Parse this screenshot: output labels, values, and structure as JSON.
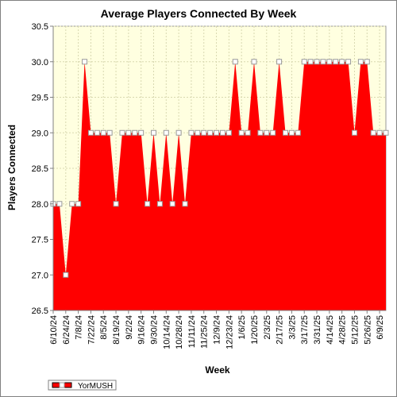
{
  "chart_data": {
    "type": "area",
    "title": "Average Players Connected By Week",
    "xlabel": "Week",
    "ylabel": "Players Connected",
    "ylim": [
      26.5,
      30.5
    ],
    "yticks": [
      "26.5",
      "27.0",
      "27.5",
      "28.0",
      "28.5",
      "29.0",
      "29.5",
      "30.0",
      "30.5"
    ],
    "xtick_labels": [
      "6/10/24",
      "6/24/24",
      "7/8/24",
      "7/22/24",
      "8/5/24",
      "8/19/24",
      "9/2/24",
      "9/16/24",
      "9/30/24",
      "10/14/24",
      "10/28/24",
      "11/11/24",
      "11/25/24",
      "12/9/24",
      "12/23/24",
      "1/6/25",
      "1/20/25",
      "2/3/25",
      "2/17/25",
      "3/3/25",
      "3/17/25",
      "3/31/25",
      "4/14/25",
      "4/28/25",
      "5/12/25",
      "5/26/25",
      "6/9/25"
    ],
    "x": [
      "6/10/24",
      "6/17/24",
      "6/24/24",
      "7/1/24",
      "7/8/24",
      "7/15/24",
      "7/22/24",
      "7/29/24",
      "8/5/24",
      "8/12/24",
      "8/19/24",
      "8/26/24",
      "9/2/24",
      "9/9/24",
      "9/16/24",
      "9/23/24",
      "9/30/24",
      "10/7/24",
      "10/14/24",
      "10/21/24",
      "10/28/24",
      "11/4/24",
      "11/11/24",
      "11/18/24",
      "11/25/24",
      "12/2/24",
      "12/9/24",
      "12/16/24",
      "12/23/24",
      "12/30/24",
      "1/6/25",
      "1/13/25",
      "1/20/25",
      "1/27/25",
      "2/3/25",
      "2/10/25",
      "2/17/25",
      "2/24/25",
      "3/3/25",
      "3/10/25",
      "3/17/25",
      "3/24/25",
      "3/31/25",
      "4/7/25",
      "4/14/25",
      "4/21/25",
      "4/28/25",
      "5/5/25",
      "5/12/25",
      "5/19/25",
      "5/26/25",
      "6/2/25",
      "6/9/25",
      "6/16/25"
    ],
    "series": [
      {
        "name": "YorMUSH",
        "color": "#ff0000",
        "values": [
          28,
          28,
          27,
          28,
          28,
          30,
          29,
          29,
          29,
          29,
          28,
          29,
          29,
          29,
          29,
          28,
          29,
          28,
          29,
          28,
          29,
          28,
          29,
          29,
          29,
          29,
          29,
          29,
          29,
          30,
          29,
          29,
          30,
          29,
          29,
          29,
          30,
          29,
          29,
          29,
          30,
          30,
          30,
          30,
          30,
          30,
          30,
          30,
          29,
          30,
          30,
          29,
          29,
          29
        ]
      }
    ],
    "legend_position": "bottom-left",
    "plot_background": "#ffffe0",
    "grid": true
  }
}
